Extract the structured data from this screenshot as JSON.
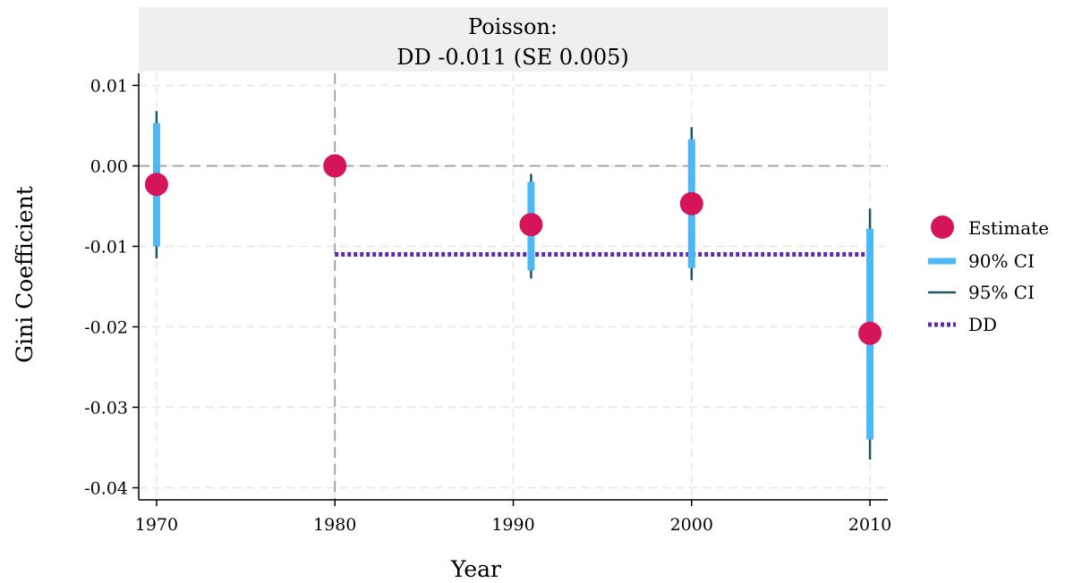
{
  "chart_data": {
    "type": "scatter",
    "panel_title_line1": "Poisson:",
    "panel_title_line2": "DD -0.011 (SE 0.005)",
    "xlabel": "Year",
    "ylabel": "Gini Coefficient",
    "xlim": [
      1969,
      2011
    ],
    "ylim": [
      -0.0415,
      0.0115
    ],
    "x_ticks": [
      1970,
      1980,
      1990,
      2000,
      2010
    ],
    "x_tick_labels": [
      "1970",
      "1980",
      "1990",
      "2000",
      "2010"
    ],
    "y_ticks": [
      0.01,
      0.0,
      -0.01,
      -0.02,
      -0.03,
      -0.04
    ],
    "y_tick_labels": [
      "0.01",
      "0.00",
      "-0.01",
      "-0.02",
      "-0.03",
      "-0.04"
    ],
    "grid": true,
    "reference_lines": {
      "horizontal_y": 0,
      "vertical_x": 1980
    },
    "series": [
      {
        "name": "Estimate",
        "points": [
          {
            "x": 1970,
            "y": -0.0023,
            "ci90": [
              -0.01,
              0.0053
            ],
            "ci95": [
              -0.0115,
              0.0068
            ]
          },
          {
            "x": 1980,
            "y": 0.0
          },
          {
            "x": 1991,
            "y": -0.0073,
            "ci90": [
              -0.013,
              -0.002
            ],
            "ci95": [
              -0.014,
              -0.001
            ]
          },
          {
            "x": 2000,
            "y": -0.0047,
            "ci90": [
              -0.0127,
              0.0033
            ],
            "ci95": [
              -0.0142,
              0.0048
            ]
          },
          {
            "x": 2010,
            "y": -0.0208,
            "ci90": [
              -0.034,
              -0.0078
            ],
            "ci95": [
              -0.0365,
              -0.0053
            ]
          }
        ]
      }
    ],
    "dd": {
      "name": "DD",
      "value": -0.011,
      "x_range": [
        1980,
        2010
      ]
    },
    "legend": {
      "position": "right",
      "entries": [
        "Estimate",
        "90% CI",
        "95% CI",
        "DD"
      ]
    },
    "colors": {
      "estimate": "#d6145a",
      "ci90": "#4cb8f5",
      "ci95": "#1f5561",
      "dd": "#5b2bab",
      "grid": "#e6e6e6",
      "reference": "#9c9c9c",
      "title_bg": "#efefef"
    }
  }
}
